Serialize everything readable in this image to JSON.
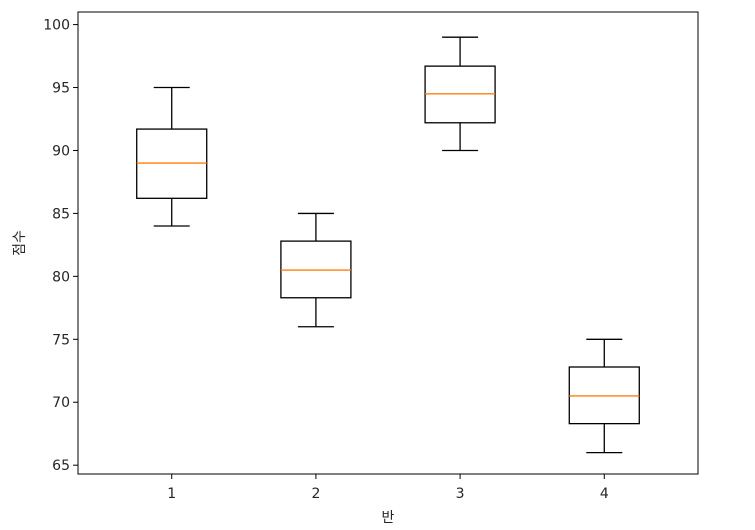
{
  "chart_data": {
    "type": "box",
    "xlabel": "반",
    "ylabel": "점수",
    "categories": [
      "1",
      "2",
      "3",
      "4"
    ],
    "ylim": [
      64.3,
      101
    ],
    "yticks": [
      65,
      70,
      75,
      80,
      85,
      90,
      95,
      100
    ],
    "grid": false,
    "boxes": [
      {
        "category": "1",
        "whisker_low": 84,
        "q1": 86.2,
        "median": 89,
        "q3": 91.7,
        "whisker_high": 95
      },
      {
        "category": "2",
        "whisker_low": 76,
        "q1": 78.3,
        "median": 80.5,
        "q3": 82.8,
        "whisker_high": 85
      },
      {
        "category": "3",
        "whisker_low": 90,
        "q1": 92.2,
        "median": 94.5,
        "q3": 96.7,
        "whisker_high": 99
      },
      {
        "category": "4",
        "whisker_low": 66,
        "q1": 68.3,
        "median": 70.5,
        "q3": 72.8,
        "whisker_high": 75
      }
    ],
    "colors": {
      "box": "#000000",
      "median": "#ff7f0e"
    }
  }
}
